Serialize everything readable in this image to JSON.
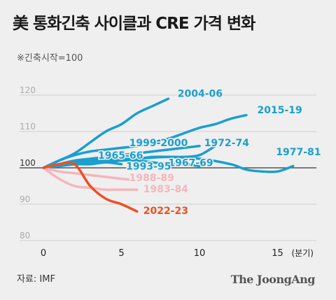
{
  "title": "美 통화긴축 사이클과 CRE 가격 변화",
  "subtitle": "※긴축시작=100",
  "source": "자료: IMF",
  "logo": "The JoongAng",
  "chart_data": {
    "type": "line",
    "xlim": [
      -1,
      17
    ],
    "ylim": [
      80,
      125
    ],
    "xticks": [
      0,
      5,
      10,
      15
    ],
    "yticks": [
      80,
      90,
      100,
      110,
      120
    ],
    "x_unit_label": "(분기)",
    "grid": "horizontal",
    "series": [
      {
        "name": "2004-06",
        "color": "#1a9fcf",
        "width": 3.5,
        "x": [
          0,
          1,
          2,
          3,
          4,
          5,
          6,
          7,
          8
        ],
        "y": [
          100,
          102,
          104,
          107,
          110,
          112,
          115,
          117,
          119
        ]
      },
      {
        "name": "2015-19",
        "color": "#1a9fcf",
        "width": 3.5,
        "x": [
          0,
          1,
          2,
          3,
          4,
          5,
          6,
          7,
          8,
          9,
          10,
          11,
          12,
          13
        ],
        "y": [
          100,
          102,
          103.5,
          104.5,
          105,
          105.5,
          106,
          107,
          108,
          109.5,
          111,
          112,
          113.5,
          114.5
        ]
      },
      {
        "name": "1999-2000",
        "color": "#1a9fcf",
        "width": 3.5,
        "x": [
          0,
          1,
          2,
          3,
          4,
          5,
          6,
          7,
          8,
          9,
          10
        ],
        "y": [
          100,
          101,
          102,
          102.5,
          103,
          103.5,
          104,
          104.5,
          105,
          105.5,
          106
        ]
      },
      {
        "name": "1972-74",
        "color": "#1a9fcf",
        "width": 3.5,
        "x": [
          0,
          1,
          2,
          3,
          4,
          5,
          6,
          7,
          8,
          9,
          10,
          11
        ],
        "y": [
          100,
          101,
          101.5,
          102,
          102,
          102.5,
          102.5,
          103,
          103,
          103,
          103.5,
          106
        ]
      },
      {
        "name": "1965-66",
        "color": "#1a9fcf",
        "width": 3.5,
        "x": [
          0,
          1,
          2,
          3,
          4,
          5
        ],
        "y": [
          100,
          101,
          101.5,
          102,
          102.5,
          102
        ]
      },
      {
        "name": "1967-69",
        "color": "#1a9fcf",
        "width": 3.5,
        "x": [
          0,
          1,
          2,
          3,
          4,
          5,
          6,
          7,
          8,
          9,
          10
        ],
        "y": [
          100,
          100.5,
          101,
          101.5,
          101.5,
          102,
          102,
          101.5,
          101,
          101,
          100.5
        ]
      },
      {
        "name": "1993-95",
        "color": "#1a9fcf",
        "width": 3.5,
        "x": [
          0,
          1,
          2,
          3,
          4,
          5
        ],
        "y": [
          100,
          100.5,
          101,
          101,
          101.5,
          101
        ]
      },
      {
        "name": "1977-81",
        "color": "#1a9fcf",
        "width": 3.5,
        "x": [
          0,
          2,
          4,
          6,
          8,
          10,
          12,
          13,
          14,
          15,
          16
        ],
        "y": [
          100,
          101,
          102,
          102.5,
          103,
          102.5,
          101,
          99.5,
          99,
          99,
          100.5
        ]
      },
      {
        "name": "1988-89",
        "color": "#f4b6bb",
        "width": 3.5,
        "x": [
          0,
          1,
          2,
          3,
          4,
          5,
          6
        ],
        "y": [
          100,
          99,
          98.5,
          98,
          97.5,
          97,
          96.5
        ]
      },
      {
        "name": "1983-84",
        "color": "#f4b6bb",
        "width": 3.5,
        "x": [
          0,
          1,
          2,
          3,
          4,
          5,
          6
        ],
        "y": [
          100,
          97,
          95,
          94.5,
          94,
          94,
          94
        ]
      },
      {
        "name": "2022-23",
        "color": "#f04e23",
        "width": 3.5,
        "x": [
          0,
          1,
          2,
          3,
          4,
          5,
          6
        ],
        "y": [
          100,
          101,
          101,
          95,
          91.5,
          90,
          88
        ]
      }
    ],
    "labels": [
      {
        "text": "2004-06",
        "color": "#1a9fcf",
        "x": 8.6,
        "y": 119.5
      },
      {
        "text": "2015-19",
        "color": "#1a9fcf",
        "x": 13.7,
        "y": 115
      },
      {
        "text": "1999-2000",
        "color": "#1a9fcf",
        "x": 5.5,
        "y": 106
      },
      {
        "text": "1972-74",
        "color": "#1a9fcf",
        "x": 10.3,
        "y": 106
      },
      {
        "text": "1965-66",
        "color": "#1a9fcf",
        "x": 3.5,
        "y": 102.5
      },
      {
        "text": "1967-69",
        "color": "#1a9fcf",
        "x": 8.0,
        "y": 100.5
      },
      {
        "text": "1993-95",
        "color": "#1a9fcf",
        "x": 5.3,
        "y": 99.5
      },
      {
        "text": "1977-81",
        "color": "#1a9fcf",
        "x": 14.9,
        "y": 103.5
      },
      {
        "text": "1988-89",
        "color": "#f4b6bb",
        "x": 5.5,
        "y": 96.3
      },
      {
        "text": "1983-84",
        "color": "#f4b6bb",
        "x": 6.4,
        "y": 93.3
      },
      {
        "text": "2022-23",
        "color": "#f04e23",
        "x": 6.4,
        "y": 87.3
      }
    ]
  }
}
